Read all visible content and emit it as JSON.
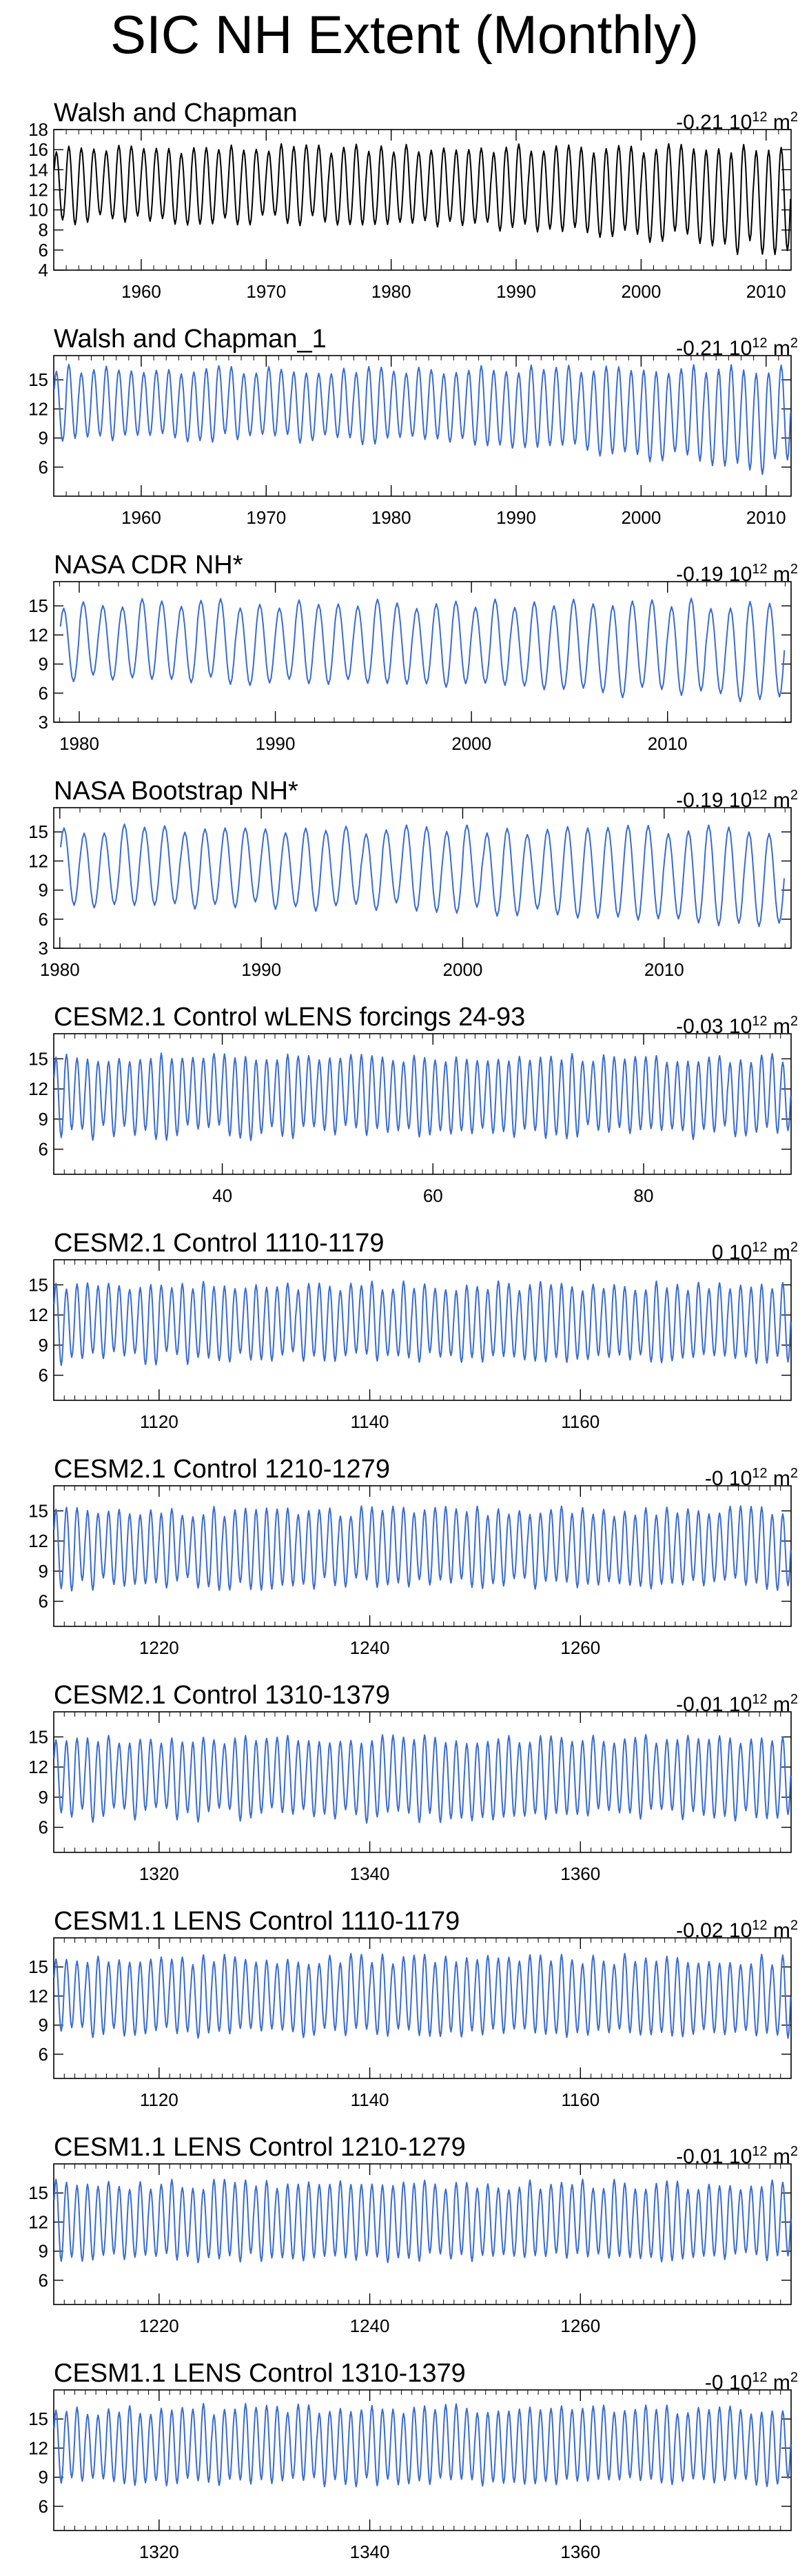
{
  "title": "SIC NH Extent (Monthly)",
  "units": {
    "value": "10",
    "exp": "12",
    "unit": "m",
    "unit_exp": "2"
  },
  "chart_data": [
    {
      "type": "line",
      "title": "Walsh and Chapman",
      "trend": "-0.21",
      "color": "#000000",
      "xlim": [
        1953,
        2012
      ],
      "ylim": [
        4,
        18
      ],
      "xticks": [
        1960,
        1970,
        1980,
        1990,
        2000,
        2010
      ],
      "yticks": [
        4,
        6,
        8,
        10,
        12,
        14,
        16,
        18
      ],
      "series": {
        "start": 1953,
        "years": 59,
        "max_range": [
          15.6,
          16.6
        ],
        "min_range": [
          8.5,
          9.6
        ],
        "min_end": [
          4.6,
          6.8
        ]
      }
    },
    {
      "type": "line",
      "title": "Walsh and Chapman_1",
      "trend": "-0.21",
      "color": "#3a6bd1",
      "xlim": [
        1953,
        2012
      ],
      "ylim": [
        3,
        17.5
      ],
      "xticks": [
        1960,
        1970,
        1980,
        1990,
        2000,
        2010
      ],
      "yticks": [
        6,
        9,
        12,
        15
      ],
      "series": {
        "start": 1953,
        "years": 59,
        "max_range": [
          15.6,
          16.6
        ],
        "min_range": [
          8.5,
          9.6
        ],
        "min_end": [
          4.6,
          6.8
        ]
      }
    },
    {
      "type": "line",
      "title": "NASA CDR NH*",
      "trend": "-0.19",
      "color": "#3a6bd1",
      "xlim": [
        1978.7,
        2016.3
      ],
      "ylim": [
        3,
        17.5
      ],
      "xticks": [
        1980,
        1990,
        2000,
        2010
      ],
      "yticks": [
        3,
        6,
        9,
        12,
        15
      ],
      "series": {
        "start": 1979,
        "years": 37,
        "max_range": [
          14.7,
          15.8
        ],
        "min_range": [
          6.8,
          7.9
        ],
        "min_end": [
          4.0,
          5.9
        ]
      }
    },
    {
      "type": "line",
      "title": "NASA Bootstrap NH*",
      "trend": "-0.19",
      "color": "#3a6bd1",
      "xlim": [
        1979.7,
        2016.3
      ],
      "ylim": [
        3,
        17.5
      ],
      "xticks": [
        1980,
        1990,
        2000,
        2010
      ],
      "yticks": [
        3,
        6,
        9,
        12,
        15
      ],
      "series": {
        "start": 1980,
        "years": 36,
        "max_range": [
          14.7,
          15.8
        ],
        "min_range": [
          6.8,
          7.9
        ],
        "min_end": [
          4.0,
          5.9
        ]
      }
    },
    {
      "type": "line",
      "title": "CESM2.1 Control wLENS forcings 24-93",
      "trend": "-0.03",
      "color": "#3a6bd1",
      "xlim": [
        24,
        94
      ],
      "ylim": [
        3.5,
        17.5
      ],
      "xticks": [
        40,
        60,
        80
      ],
      "yticks": [
        6,
        9,
        12,
        15
      ],
      "series": {
        "start": 24,
        "years": 70,
        "max_range": [
          14.6,
          15.6
        ],
        "min_range": [
          6.8,
          8.5
        ],
        "min_end": [
          6.8,
          8.5
        ]
      }
    },
    {
      "type": "line",
      "title": "CESM2.1 Control 1110-1179",
      "trend": "0",
      "color": "#3a6bd1",
      "xlim": [
        1110,
        1180
      ],
      "ylim": [
        3.5,
        17.5
      ],
      "xticks": [
        1120,
        1140,
        1160
      ],
      "yticks": [
        6,
        9,
        12,
        15
      ],
      "series": {
        "start": 1110,
        "years": 70,
        "max_range": [
          14.4,
          15.4
        ],
        "min_range": [
          6.9,
          8.4
        ],
        "min_end": [
          6.9,
          8.4
        ]
      }
    },
    {
      "type": "line",
      "title": "CESM2.1 Control 1210-1279",
      "trend": "-0",
      "color": "#3a6bd1",
      "xlim": [
        1210,
        1280
      ],
      "ylim": [
        3.5,
        17.5
      ],
      "xticks": [
        1220,
        1240,
        1260
      ],
      "yticks": [
        6,
        9,
        12,
        15
      ],
      "series": {
        "start": 1210,
        "years": 70,
        "max_range": [
          14.4,
          15.5
        ],
        "min_range": [
          7.0,
          8.4
        ],
        "min_end": [
          7.0,
          8.4
        ]
      }
    },
    {
      "type": "line",
      "title": "CESM2.1 Control 1310-1379",
      "trend": "-0.01",
      "color": "#3a6bd1",
      "xlim": [
        1310,
        1380
      ],
      "ylim": [
        3.5,
        17.5
      ],
      "xticks": [
        1320,
        1340,
        1360
      ],
      "yticks": [
        6,
        9,
        12,
        15
      ],
      "series": {
        "start": 1310,
        "years": 70,
        "max_range": [
          14.3,
          15.3
        ],
        "min_range": [
          6.4,
          8.0
        ],
        "min_end": [
          6.4,
          8.0
        ]
      }
    },
    {
      "type": "line",
      "title": "CESM1.1 LENS Control 1110-1179",
      "trend": "-0.02",
      "color": "#3a6bd1",
      "xlim": [
        1110,
        1180
      ],
      "ylim": [
        3.5,
        18
      ],
      "xticks": [
        1120,
        1140,
        1160
      ],
      "yticks": [
        6,
        9,
        12,
        15
      ],
      "series": {
        "start": 1110,
        "years": 70,
        "max_range": [
          15.2,
          16.4
        ],
        "min_range": [
          7.6,
          8.8
        ],
        "min_end": [
          7.6,
          8.8
        ]
      }
    },
    {
      "type": "line",
      "title": "CESM1.1 LENS Control 1210-1279",
      "trend": "-0.01",
      "color": "#3a6bd1",
      "xlim": [
        1210,
        1280
      ],
      "ylim": [
        3.5,
        18
      ],
      "xticks": [
        1220,
        1240,
        1260
      ],
      "yticks": [
        6,
        9,
        12,
        15
      ],
      "series": {
        "start": 1210,
        "years": 70,
        "max_range": [
          15.3,
          16.5
        ],
        "min_range": [
          7.8,
          8.9
        ],
        "min_end": [
          7.8,
          8.9
        ]
      }
    },
    {
      "type": "line",
      "title": "CESM1.1 LENS Control 1310-1379",
      "trend": "-0",
      "color": "#3a6bd1",
      "xlim": [
        1310,
        1380
      ],
      "ylim": [
        3.5,
        18
      ],
      "xticks": [
        1320,
        1340,
        1360
      ],
      "yticks": [
        6,
        9,
        12,
        15
      ],
      "series": {
        "start": 1310,
        "years": 70,
        "max_range": [
          15.4,
          16.6
        ],
        "min_range": [
          8.0,
          9.0
        ],
        "min_end": [
          8.0,
          9.0
        ]
      }
    }
  ]
}
